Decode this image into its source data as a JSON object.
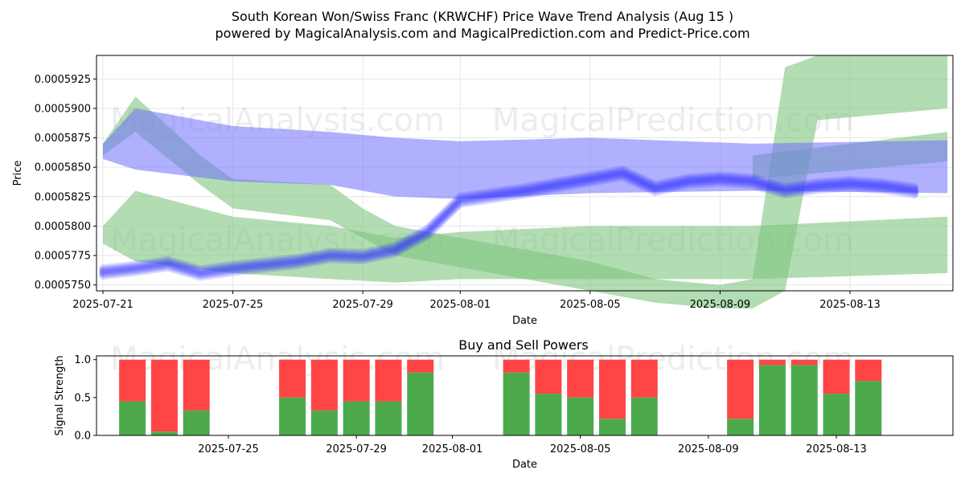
{
  "title_line1": "South Korean Won/Swiss Franc (KRWCHF) Price Wave Trend Analysis (Aug 15 )",
  "title_line2": "powered by MagicalAnalysis.com and MagicalPrediction.com and Predict-Price.com",
  "watermarks": [
    "MagicalAnalysis.com",
    "MagicalPrediction.com"
  ],
  "colors": {
    "green_band": "#7fc47f",
    "blue_band": "#6f6fff",
    "buy": "#4caa4c",
    "sell": "#ff4545"
  },
  "chart_data": [
    {
      "type": "area",
      "title": "",
      "xlabel": "Date",
      "ylabel": "Price",
      "x_domain": [
        "2025-07-21",
        "2025-08-16"
      ],
      "ylim": [
        0.0005745,
        0.0005945
      ],
      "yticks": [
        "0.0005750",
        "0.0005775",
        "0.0005800",
        "0.0005825",
        "0.0005850",
        "0.0005875",
        "0.0005900",
        "0.0005925"
      ],
      "xticks": [
        "2025-07-21",
        "2025-07-25",
        "2025-07-29",
        "2025-08-01",
        "2025-08-05",
        "2025-08-09",
        "2025-08-13"
      ],
      "grid": true,
      "green_bands": [
        {
          "x": [
            "2025-07-21",
            "2025-07-22",
            "2025-07-24",
            "2025-07-25",
            "2025-07-28",
            "2025-07-29",
            "2025-07-30",
            "2025-08-01",
            "2025-08-05",
            "2025-08-07",
            "2025-08-09",
            "2025-08-10",
            "2025-08-11",
            "2025-08-12",
            "2025-08-16"
          ],
          "lower": [
            0.000586,
            0.000588,
            0.0005835,
            0.0005815,
            0.0005805,
            0.000579,
            0.0005775,
            0.0005765,
            0.0005745,
            0.0005735,
            0.000573,
            0.000573,
            0.0005745,
            0.000589,
            0.00059
          ],
          "upper": [
            0.000587,
            0.000591,
            0.000586,
            0.000584,
            0.0005835,
            0.0005815,
            0.00058,
            0.000579,
            0.000577,
            0.0005755,
            0.000575,
            0.0005755,
            0.0005935,
            0.0005945,
            0.0005945
          ]
        },
        {
          "x": [
            "2025-07-21",
            "2025-07-22",
            "2025-07-25",
            "2025-07-28",
            "2025-07-30",
            "2025-08-01",
            "2025-08-05",
            "2025-08-10",
            "2025-08-16"
          ],
          "lower": [
            0.0005785,
            0.000577,
            0.000576,
            0.0005755,
            0.0005752,
            0.0005755,
            0.0005755,
            0.0005755,
            0.000576
          ],
          "upper": [
            0.00058,
            0.000583,
            0.0005808,
            0.00058,
            0.000579,
            0.0005795,
            0.00058,
            0.00058,
            0.0005808
          ]
        },
        {
          "x": [
            "2025-08-10",
            "2025-08-16"
          ],
          "lower": [
            0.000584,
            0.0005855
          ],
          "upper": [
            0.000586,
            0.000588
          ]
        }
      ],
      "blue_bands": [
        {
          "x": [
            "2025-07-21",
            "2025-07-22",
            "2025-07-25",
            "2025-07-28",
            "2025-07-30",
            "2025-08-01",
            "2025-08-05",
            "2025-08-10",
            "2025-08-16"
          ],
          "lower": [
            0.0005857,
            0.0005848,
            0.0005838,
            0.0005835,
            0.0005825,
            0.0005823,
            0.0005828,
            0.000583,
            0.0005828
          ],
          "upper": [
            0.000587,
            0.00059,
            0.0005885,
            0.000588,
            0.0005875,
            0.0005872,
            0.0005875,
            0.000587,
            0.0005873
          ]
        }
      ],
      "blue_price_line": {
        "x": [
          "2025-07-21",
          "2025-07-22",
          "2025-07-23",
          "2025-07-24",
          "2025-07-25",
          "2025-07-26",
          "2025-07-27",
          "2025-07-28",
          "2025-07-29",
          "2025-07-30",
          "2025-07-31",
          "2025-08-01",
          "2025-08-02",
          "2025-08-03",
          "2025-08-04",
          "2025-08-05",
          "2025-08-06",
          "2025-08-07",
          "2025-08-08",
          "2025-08-09",
          "2025-08-10",
          "2025-08-11",
          "2025-08-12",
          "2025-08-13",
          "2025-08-14",
          "2025-08-15"
        ],
        "values": [
          0.0005761,
          0.0005764,
          0.0005768,
          0.000576,
          0.0005764,
          0.0005767,
          0.000577,
          0.0005775,
          0.0005774,
          0.000578,
          0.0005795,
          0.0005822,
          0.0005826,
          0.000583,
          0.0005835,
          0.000584,
          0.0005845,
          0.0005832,
          0.0005838,
          0.000584,
          0.0005838,
          0.000583,
          0.0005834,
          0.0005836,
          0.0005834,
          0.000583
        ]
      }
    },
    {
      "type": "bar",
      "title": "Buy and Sell Powers",
      "xlabel": "Date",
      "ylabel": "Signal Strength",
      "ylim": [
        0,
        1.05
      ],
      "yticks": [
        "0.0",
        "0.5",
        "1.0"
      ],
      "xticks": [
        "2025-07-25",
        "2025-07-29",
        "2025-08-01",
        "2025-08-05",
        "2025-08-09",
        "2025-08-13"
      ],
      "dates": [
        "2025-07-22",
        "2025-07-23",
        "2025-07-24",
        "2025-07-27",
        "2025-07-28",
        "2025-07-29",
        "2025-07-30",
        "2025-07-31",
        "2025-08-03",
        "2025-08-04",
        "2025-08-05",
        "2025-08-06",
        "2025-08-07",
        "2025-08-10",
        "2025-08-11",
        "2025-08-12",
        "2025-08-13",
        "2025-08-14"
      ],
      "buy": [
        0.45,
        0.05,
        0.33,
        0.5,
        0.33,
        0.45,
        0.45,
        0.83,
        0.83,
        0.55,
        0.5,
        0.22,
        0.5,
        0.22,
        0.93,
        0.93,
        0.55,
        0.72
      ],
      "sell": [
        0.55,
        0.95,
        0.67,
        0.5,
        0.67,
        0.55,
        0.55,
        0.17,
        0.17,
        0.45,
        0.5,
        0.78,
        0.5,
        0.78,
        0.07,
        0.07,
        0.45,
        0.28
      ]
    }
  ]
}
